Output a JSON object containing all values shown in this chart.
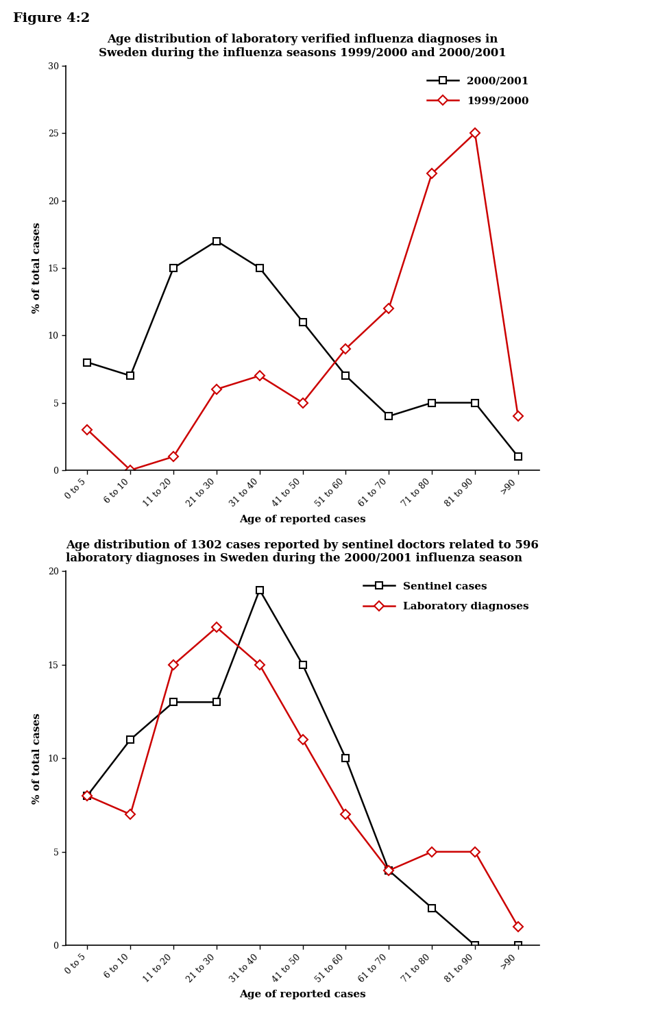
{
  "figure_label": "Figure 4:2",
  "chart1": {
    "title": "Age distribution of laboratory verified influenza diagnoses in\nSweden during the influenza seasons 1999/2000 and 2000/2001",
    "xlabel": "Age of reported cases",
    "ylabel": "% of total cases",
    "ylim": [
      0,
      30
    ],
    "yticks": [
      0,
      5,
      10,
      15,
      20,
      25,
      30
    ],
    "categories": [
      "0 to 5",
      "6 to 10",
      "11 to 20",
      "21 to 30",
      "31 to 40",
      "41 to 50",
      "51 to 60",
      "61 to 70",
      "71 to 80",
      "81 to 90",
      ">90"
    ],
    "series": [
      {
        "label": "2000/2001",
        "color": "#000000",
        "marker": "s",
        "markersize": 7,
        "values": [
          8,
          7,
          15,
          17,
          15,
          11,
          7,
          4,
          5,
          5,
          1
        ]
      },
      {
        "label": "1999/2000",
        "color": "#cc0000",
        "marker": "D",
        "markersize": 7,
        "values": [
          3,
          0,
          1,
          6,
          7,
          5,
          9,
          12,
          22,
          25,
          4
        ]
      }
    ]
  },
  "chart2": {
    "title": "Age distribution of 1302 cases reported by sentinel doctors related to 596\nlaboratory diagnoses in Sweden during the 2000/2001 influenza season",
    "xlabel": "Age of reported cases",
    "ylabel": "% of total cases",
    "ylim": [
      0,
      20
    ],
    "yticks": [
      0,
      5,
      10,
      15,
      20
    ],
    "categories": [
      "0 to 5",
      "6 to 10",
      "11 to 20",
      "21 to 30",
      "31 to 40",
      "41 to 50",
      "51 to 60",
      "61 to 70",
      "71 to 80",
      "81 to 90",
      ">90"
    ],
    "series": [
      {
        "label": "Sentinel cases",
        "color": "#000000",
        "marker": "s",
        "markersize": 7,
        "values": [
          8,
          11,
          13,
          13,
          19,
          15,
          10,
          4,
          2,
          0,
          0
        ]
      },
      {
        "label": "Laboratory diagnoses",
        "color": "#cc0000",
        "marker": "D",
        "markersize": 7,
        "values": [
          8,
          7,
          15,
          17,
          15,
          11,
          7,
          4,
          5,
          5,
          1
        ]
      }
    ]
  },
  "background_color": "#ffffff",
  "title_fontsize": 12,
  "axis_label_fontsize": 11,
  "tick_fontsize": 9,
  "legend_fontsize": 11,
  "figure_label_fontsize": 14
}
